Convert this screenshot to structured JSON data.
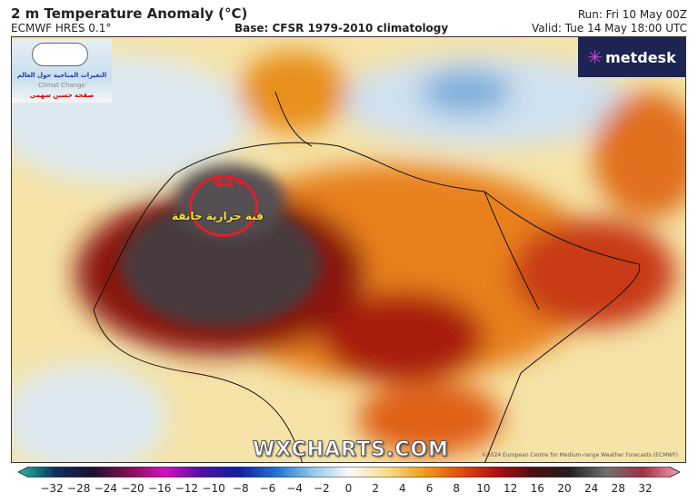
{
  "header": {
    "title": "2 m Temperature Anomaly (°C)",
    "model": "ECMWF HRES 0.1°",
    "base": "Base: CFSR 1979-2010 climatology",
    "run": "Run: Fri 10 May 00Z",
    "valid": "Valid: Tue 14 May 18:00 UTC"
  },
  "map": {
    "brand": "metdesk",
    "watermark": "WXCHARTS.COM",
    "copyright": "©2024 European Centre for Medium-range Weather Forecasts (ECMWF)",
    "annotation_value": "44+",
    "annotation_text": "قبة حرارية خانقة",
    "annotation_color": "#e0202a",
    "logo": {
      "line1": "التغيرات المناخية حول العالم",
      "line2": "Climat Change",
      "line3": "صفحة حسين سهمي"
    }
  },
  "colorbar": {
    "ticks": [
      "−32",
      "−28",
      "−24",
      "−20",
      "−16",
      "−12",
      "−10",
      "−8",
      "−6",
      "−4",
      "−2",
      "0",
      "2",
      "4",
      "6",
      "8",
      "10",
      "12",
      "16",
      "20",
      "24",
      "28",
      "32"
    ],
    "colors": [
      "#20c0a0",
      "#103060",
      "#1a1030",
      "#801050",
      "#d010c0",
      "#5010a0",
      "#1020a0",
      "#2070d0",
      "#90c8e8",
      "#f8f8f8",
      "#f8e090",
      "#f0a020",
      "#e05010",
      "#b01010",
      "#501010",
      "#202020",
      "#707070",
      "#a03040",
      "#f0a0b8"
    ]
  }
}
